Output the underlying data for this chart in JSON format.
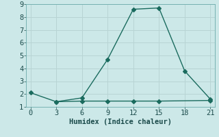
{
  "xlabel": "Humidex (Indice chaleur)",
  "line1_x": [
    0,
    3,
    6,
    9,
    12,
    15,
    18,
    21
  ],
  "line1_y": [
    2.1,
    1.4,
    1.7,
    4.7,
    8.6,
    8.7,
    3.8,
    1.6
  ],
  "line2_x": [
    3,
    6,
    9,
    12,
    15,
    21
  ],
  "line2_y": [
    1.4,
    1.45,
    1.45,
    1.45,
    1.45,
    1.5
  ],
  "line_color": "#1a6b5e",
  "bg_color": "#cce8e8",
  "grid_color": "#b8d4d4",
  "xlim": [
    -0.5,
    21.5
  ],
  "ylim": [
    1,
    9
  ],
  "xticks": [
    0,
    3,
    6,
    9,
    12,
    15,
    18,
    21
  ],
  "yticks": [
    1,
    2,
    3,
    4,
    5,
    6,
    7,
    8,
    9
  ],
  "marker": "D",
  "markersize": 3.0,
  "linewidth": 1.0,
  "xlabel_fontsize": 7.5,
  "tick_fontsize": 7.5
}
